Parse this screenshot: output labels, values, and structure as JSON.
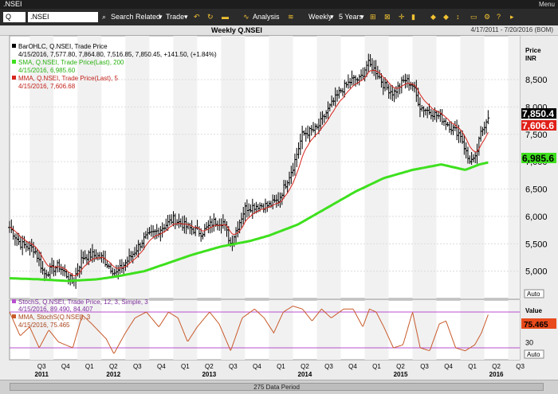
{
  "window": {
    "title": ".NSEI",
    "menu_label": "Menu"
  },
  "toolbar": {
    "q_label": "Q",
    "symbol": ".NSEI",
    "search_label": "Search",
    "related_label": "Related",
    "trade_label": "Trade",
    "analysis_label": "Analysis",
    "interval_label": "Weekly",
    "range_label": "5 Years"
  },
  "chart_header": {
    "title": "Weekly Q.NSEI",
    "date_range": "4/17/2011 - 7/20/2016 (BOM)"
  },
  "legend": {
    "line1_name": "BarOHLC, Q.NSEI, Trade Price",
    "line1_values": "4/15/2016, 7,577.80, 7,864.80, 7,516.85, 7,850.45, +141.50, (+1.84%)",
    "line2_name": "SMA, Q.NSEI, Trade Price(Last), 200",
    "line2_values": "4/15/2016, 6,985.60",
    "line3_name": "MMA, Q.NSEI, Trade Price(Last), 5",
    "line3_values": "4/15/2016, 7,606.68",
    "stoch_line1_name": "StochS, Q.NSEI, Trade Price, 12, 3, Simple, 3",
    "stoch_line1_values": "4/15/2016, 89.490, 84.407",
    "stoch_line2_name": "MMA, StochS(Q.NSEI), 3",
    "stoch_line2_values": "4/15/2016, 75.465"
  },
  "price_axis": {
    "title_line1": "Price",
    "title_line2": "INR"
  },
  "stoch_axis": {
    "title": "Value"
  },
  "auto_label_price": "Auto",
  "auto_label_stoch": "Auto",
  "bottom": {
    "data_period_label": "275 Data Period"
  },
  "colors": {
    "sma": "#3ee01e",
    "mma": "#d8261e",
    "bars": "#000000",
    "stoch": "#c85a2a",
    "bands": "#b84fd0"
  },
  "chart_data": [
    {
      "type": "line",
      "title": "Weekly Q.NSEI",
      "ylabel": "Price INR",
      "ylim": [
        4500,
        9300
      ],
      "yticks": [
        5000,
        5500,
        6000,
        6500,
        7000,
        7500,
        8000,
        8500
      ],
      "ytick_labels": [
        "5,000",
        "5,500",
        "6,000",
        "6,500",
        "7,000",
        "7,500",
        "8,000",
        "8,500"
      ],
      "x_labels": [
        {
          "label": "Q3",
          "year": "2011",
          "t": 2011.5
        },
        {
          "label": "Q4",
          "t": 2011.75
        },
        {
          "label": "Q1",
          "t": 2012.0
        },
        {
          "label": "Q2",
          "year": "2012",
          "t": 2012.25
        },
        {
          "label": "Q3",
          "t": 2012.5
        },
        {
          "label": "Q4",
          "t": 2012.75
        },
        {
          "label": "Q1",
          "t": 2013.0
        },
        {
          "label": "Q2",
          "year": "2013",
          "t": 2013.25
        },
        {
          "label": "Q3",
          "t": 2013.5
        },
        {
          "label": "Q4",
          "t": 2013.75
        },
        {
          "label": "Q1",
          "t": 2014.0
        },
        {
          "label": "Q2",
          "year": "2014",
          "t": 2014.25
        },
        {
          "label": "Q3",
          "t": 2014.5
        },
        {
          "label": "Q4",
          "t": 2014.75
        },
        {
          "label": "Q1",
          "t": 2015.0
        },
        {
          "label": "Q2",
          "year": "2015",
          "t": 2015.25
        },
        {
          "label": "Q3",
          "t": 2015.5
        },
        {
          "label": "Q4",
          "t": 2015.75
        },
        {
          "label": "Q1",
          "t": 2016.0
        },
        {
          "label": "Q2",
          "year": "2016",
          "t": 2016.25
        },
        {
          "label": "Q3",
          "t": 2016.5
        }
      ],
      "price_keypoints": [
        [
          2011.29,
          5800
        ],
        [
          2011.4,
          5500
        ],
        [
          2011.55,
          5400
        ],
        [
          2011.65,
          4950
        ],
        [
          2011.8,
          5100
        ],
        [
          2011.95,
          4800
        ],
        [
          2012.05,
          5250
        ],
        [
          2012.15,
          5300
        ],
        [
          2012.25,
          5250
        ],
        [
          2012.4,
          4950
        ],
        [
          2012.55,
          5250
        ],
        [
          2012.7,
          5600
        ],
        [
          2012.85,
          5750
        ],
        [
          2013.0,
          5950
        ],
        [
          2013.15,
          5800
        ],
        [
          2013.3,
          5700
        ],
        [
          2013.42,
          5900
        ],
        [
          2013.52,
          5900
        ],
        [
          2013.6,
          5500
        ],
        [
          2013.75,
          6150
        ],
        [
          2013.88,
          6200
        ],
        [
          2014.0,
          6200
        ],
        [
          2014.1,
          6300
        ],
        [
          2014.25,
          6900
        ],
        [
          2014.35,
          7500
        ],
        [
          2014.5,
          7600
        ],
        [
          2014.6,
          7900
        ],
        [
          2014.75,
          8300
        ],
        [
          2014.87,
          8500
        ],
        [
          2014.95,
          8500
        ],
        [
          2015.03,
          8800
        ],
        [
          2015.12,
          8650
        ],
        [
          2015.2,
          8400
        ],
        [
          2015.3,
          8250
        ],
        [
          2015.42,
          8500
        ],
        [
          2015.5,
          8400
        ],
        [
          2015.58,
          8000
        ],
        [
          2015.7,
          7900
        ],
        [
          2015.8,
          7800
        ],
        [
          2015.92,
          7600
        ],
        [
          2016.0,
          7500
        ],
        [
          2016.08,
          7050
        ],
        [
          2016.15,
          7000
        ],
        [
          2016.21,
          7500
        ],
        [
          2016.29,
          7850
        ]
      ],
      "series": [
        {
          "name": "SMA, Q.NSEI, Trade Price(Last), 200",
          "points": [
            [
              2011.29,
              4870
            ],
            [
              2011.6,
              4850
            ],
            [
              2011.9,
              4820
            ],
            [
              2012.2,
              4850
            ],
            [
              2012.4,
              4900
            ],
            [
              2012.7,
              5000
            ],
            [
              2012.95,
              5150
            ],
            [
              2013.2,
              5300
            ],
            [
              2013.5,
              5450
            ],
            [
              2013.8,
              5550
            ],
            [
              2014.0,
              5650
            ],
            [
              2014.3,
              5850
            ],
            [
              2014.6,
              6150
            ],
            [
              2014.9,
              6450
            ],
            [
              2015.2,
              6700
            ],
            [
              2015.5,
              6850
            ],
            [
              2015.8,
              6950
            ],
            [
              2016.05,
              6850
            ],
            [
              2016.2,
              6950
            ],
            [
              2016.29,
              6985.6
            ]
          ]
        },
        {
          "name": "MMA, Q.NSEI, Trade Price(Last), 5",
          "value_last": 7606.68
        },
        {
          "name": "BarOHLC, Q.NSEI, Trade Price",
          "value_last": 7850.45
        }
      ],
      "last_labels": {
        "price": "7,850.4",
        "mma": "7,606.6",
        "sma": "6,985.6"
      }
    },
    {
      "type": "line",
      "title": "StochS, Q.NSEI, Trade Price, 12, 3, Simple, 3",
      "ylim": [
        0,
        100
      ],
      "yticks": [
        30
      ],
      "ytick_labels": [
        "30"
      ],
      "bands": [
        80,
        20
      ],
      "last_label": "75.465",
      "series": [
        {
          "name": "MMA, StochS(Q.NSEI), 3",
          "points": [
            [
              2011.29,
              80
            ],
            [
              2011.4,
              40
            ],
            [
              2011.5,
              55
            ],
            [
              2011.6,
              20
            ],
            [
              2011.7,
              50
            ],
            [
              2011.8,
              30
            ],
            [
              2011.95,
              20
            ],
            [
              2012.05,
              75
            ],
            [
              2012.15,
              60
            ],
            [
              2012.3,
              35
            ],
            [
              2012.38,
              10
            ],
            [
              2012.5,
              45
            ],
            [
              2012.6,
              70
            ],
            [
              2012.72,
              80
            ],
            [
              2012.85,
              55
            ],
            [
              2012.95,
              80
            ],
            [
              2013.05,
              70
            ],
            [
              2013.15,
              30
            ],
            [
              2013.25,
              55
            ],
            [
              2013.38,
              80
            ],
            [
              2013.48,
              60
            ],
            [
              2013.6,
              15
            ],
            [
              2013.72,
              70
            ],
            [
              2013.85,
              85
            ],
            [
              2013.95,
              70
            ],
            [
              2014.05,
              45
            ],
            [
              2014.15,
              80
            ],
            [
              2014.25,
              90
            ],
            [
              2014.35,
              85
            ],
            [
              2014.45,
              65
            ],
            [
              2014.55,
              85
            ],
            [
              2014.65,
              70
            ],
            [
              2014.78,
              85
            ],
            [
              2014.88,
              85
            ],
            [
              2014.98,
              55
            ],
            [
              2015.05,
              85
            ],
            [
              2015.12,
              80
            ],
            [
              2015.2,
              55
            ],
            [
              2015.3,
              20
            ],
            [
              2015.4,
              25
            ],
            [
              2015.5,
              80
            ],
            [
              2015.58,
              20
            ],
            [
              2015.68,
              15
            ],
            [
              2015.78,
              60
            ],
            [
              2015.85,
              65
            ],
            [
              2015.95,
              20
            ],
            [
              2016.05,
              15
            ],
            [
              2016.15,
              25
            ],
            [
              2016.22,
              45
            ],
            [
              2016.29,
              75.465
            ]
          ]
        }
      ]
    }
  ]
}
